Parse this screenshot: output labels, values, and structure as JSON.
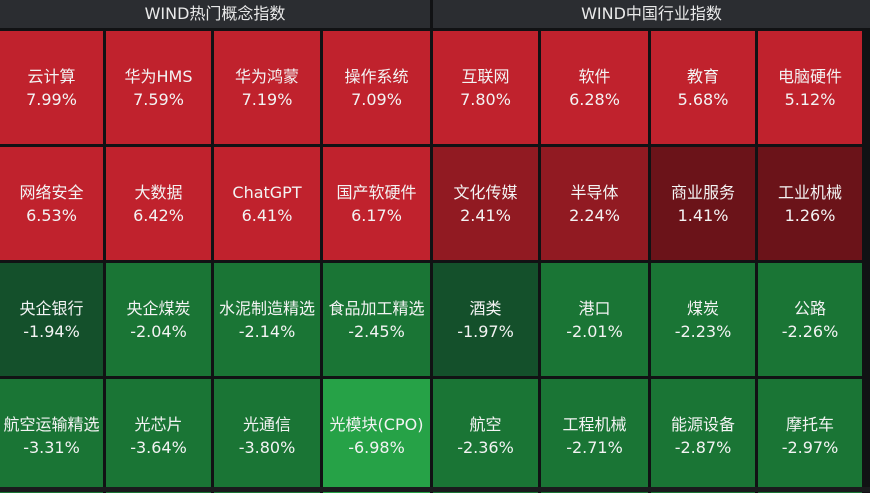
{
  "left_panel": {
    "title": "WIND热门概念指数",
    "cells": [
      {
        "name": "云计算",
        "value": "7.99%",
        "color": "#c0222d"
      },
      {
        "name": "华为HMS",
        "value": "7.59%",
        "color": "#c0222d"
      },
      {
        "name": "华为鸿蒙",
        "value": "7.19%",
        "color": "#c0222d"
      },
      {
        "name": "操作系统",
        "value": "7.09%",
        "color": "#c0222d"
      },
      {
        "name": "网络安全",
        "value": "6.53%",
        "color": "#c0222d"
      },
      {
        "name": "大数据",
        "value": "6.42%",
        "color": "#c0222d"
      },
      {
        "name": "ChatGPT",
        "value": "6.41%",
        "color": "#c0222d"
      },
      {
        "name": "国产软硬件",
        "value": "6.17%",
        "color": "#c0222d"
      },
      {
        "name": "央企银行",
        "value": "-1.94%",
        "color": "#14502b"
      },
      {
        "name": "央企煤炭",
        "value": "-2.04%",
        "color": "#1a7535"
      },
      {
        "name": "水泥制造精选",
        "value": "-2.14%",
        "color": "#1a7535"
      },
      {
        "name": "食品加工精选",
        "value": "-2.45%",
        "color": "#1a7535"
      },
      {
        "name": "航空运输精选",
        "value": "-3.31%",
        "color": "#1a7535"
      },
      {
        "name": "光芯片",
        "value": "-3.64%",
        "color": "#1a7535"
      },
      {
        "name": "光通信",
        "value": "-3.80%",
        "color": "#1a7535"
      },
      {
        "name": "光模块(CPO)",
        "value": "-6.98%",
        "color": "#26a247"
      }
    ]
  },
  "right_panel": {
    "title": "WIND中国行业指数",
    "cells": [
      {
        "name": "互联网",
        "value": "7.80%",
        "color": "#c0222d"
      },
      {
        "name": "软件",
        "value": "6.28%",
        "color": "#c0222d"
      },
      {
        "name": "教育",
        "value": "5.68%",
        "color": "#c0222d"
      },
      {
        "name": "电脑硬件",
        "value": "5.12%",
        "color": "#c0222d"
      },
      {
        "name": "文化传媒",
        "value": "2.41%",
        "color": "#911a22"
      },
      {
        "name": "半导体",
        "value": "2.24%",
        "color": "#911a22"
      },
      {
        "name": "商业服务",
        "value": "1.41%",
        "color": "#6b1319"
      },
      {
        "name": "工业机械",
        "value": "1.26%",
        "color": "#6b1319"
      },
      {
        "name": "酒类",
        "value": "-1.97%",
        "color": "#14502b"
      },
      {
        "name": "港口",
        "value": "-2.01%",
        "color": "#1a7535"
      },
      {
        "name": "煤炭",
        "value": "-2.23%",
        "color": "#1a7535"
      },
      {
        "name": "公路",
        "value": "-2.26%",
        "color": "#1a7535"
      },
      {
        "name": "航空",
        "value": "-2.36%",
        "color": "#1a7535"
      },
      {
        "name": "工程机械",
        "value": "-2.71%",
        "color": "#1a7535"
      },
      {
        "name": "能源设备",
        "value": "-2.87%",
        "color": "#1a7535"
      },
      {
        "name": "摩托车",
        "value": "-2.97%",
        "color": "#1a7535"
      }
    ]
  }
}
